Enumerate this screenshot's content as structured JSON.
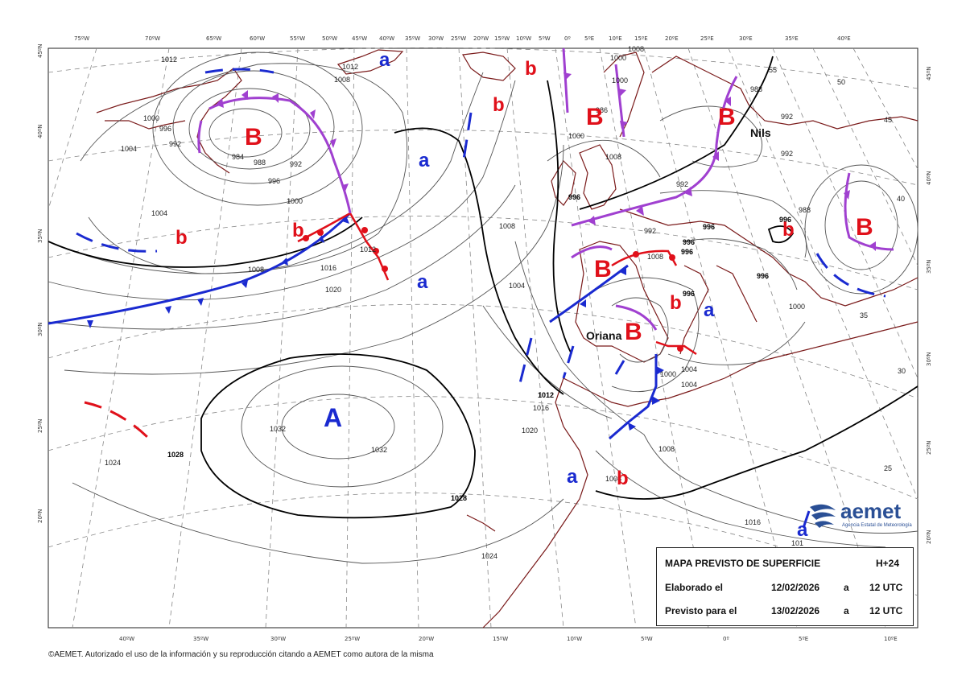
{
  "longitude_labels_top": [
    "75ºW",
    "70ºW",
    "65ºW",
    "60ºW",
    "55ºW",
    "50ºW",
    "45ºW",
    "40ºW",
    "35ºW",
    "30ºW",
    "25ºW",
    "20ºW",
    "15ºW",
    "10ºW",
    "5ºW",
    "0º",
    "5ºE",
    "10ºE",
    "15ºE",
    "20ºE",
    "25ºE",
    "30ºE",
    "35ºE",
    "40ºE"
  ],
  "longitude_labels_bottom": [
    "40ºW",
    "35ºW",
    "30ºW",
    "25ºW",
    "20ºW",
    "15ºW",
    "10ºW",
    "5ºW",
    "0º",
    "5ºE",
    "10ºE"
  ],
  "latitude_labels_left": [
    "45ºN",
    "40ºN",
    "35ºN",
    "30ºN",
    "25ºN",
    "20ºN"
  ],
  "latitude_labels_right": [
    "45ºN",
    "40ºN",
    "35ºN",
    "30ºN",
    "25ºN",
    "20ºN"
  ],
  "pressure_centers": {
    "lows": [
      "B",
      "B",
      "B",
      "B",
      "B",
      "B"
    ],
    "secondary_lows": [
      "b",
      "b",
      "b",
      "b",
      "b",
      "b",
      "b"
    ],
    "highs": [
      "A"
    ],
    "secondary_highs": [
      "a",
      "a",
      "a",
      "a",
      "a",
      "a"
    ]
  },
  "storm_names": [
    "Nils",
    "Oriana"
  ],
  "isobar_labels": [
    "1012",
    "1012",
    "1008",
    "1000",
    "996",
    "992",
    "984",
    "988",
    "992",
    "996",
    "1000",
    "1004",
    "1004",
    "1008",
    "1016",
    "1012",
    "1020",
    "1032",
    "1032",
    "1028",
    "1028",
    "1024",
    "1024",
    "1012",
    "1016",
    "1020",
    "1008",
    "1004",
    "1000",
    "1000",
    "996",
    "992",
    "992",
    "992",
    "996",
    "996",
    "996",
    "996",
    "988",
    "1008",
    "1008",
    "1000",
    "1004",
    "1016",
    "996",
    "996",
    "1004",
    "1008",
    "992",
    "55",
    "50",
    "45",
    "40",
    "35",
    "30",
    "25",
    "101",
    "1000",
    "1008",
    "988",
    "986",
    "1008",
    "1000"
  ],
  "info": {
    "title": "MAPA PREVISTO DE SUPERFICIE",
    "horizon": "H+24",
    "issued_label": "Elaborado el",
    "issued_date": "12/02/2026",
    "issued_sep": "a",
    "issued_time": "12 UTC",
    "valid_label": "Previsto para el",
    "valid_date": "13/02/2026",
    "valid_sep": "a",
    "valid_time": "12 UTC"
  },
  "logo": {
    "name": "aemet",
    "subtitle": "Agencia Estatal de Meteorología"
  },
  "copyright": "©AEMET. Autorizado el uso de la información y su reproducción citando a AEMET como autora de la misma",
  "colors": {
    "cold_front": "#1a2ad0",
    "warm_front": "#e0101a",
    "occluded_front": "#a040d0",
    "coast": "#7a1a1a",
    "isobar": "#555555"
  }
}
